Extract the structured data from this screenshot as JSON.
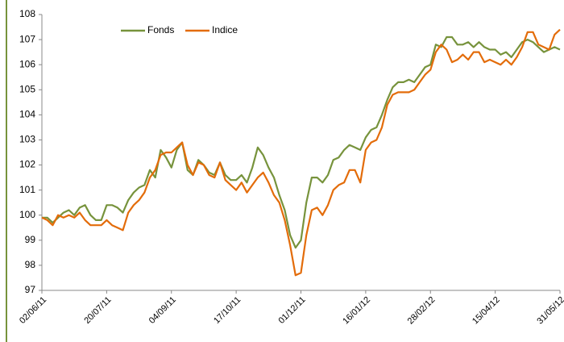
{
  "chart_data": {
    "type": "line",
    "categories": [
      "02/06/11",
      null,
      null,
      null,
      null,
      null,
      null,
      null,
      null,
      null,
      null,
      null,
      "20/07/11",
      null,
      null,
      null,
      null,
      null,
      null,
      null,
      null,
      null,
      null,
      null,
      "04/09/11",
      null,
      null,
      null,
      null,
      null,
      null,
      null,
      null,
      null,
      null,
      null,
      "17/10/11",
      null,
      null,
      null,
      null,
      null,
      null,
      null,
      null,
      null,
      null,
      null,
      "01/12/11",
      null,
      null,
      null,
      null,
      null,
      null,
      null,
      null,
      null,
      null,
      null,
      "16/01/12",
      null,
      null,
      null,
      null,
      null,
      null,
      null,
      null,
      null,
      null,
      null,
      "28/02/12",
      null,
      null,
      null,
      null,
      null,
      null,
      null,
      null,
      null,
      null,
      null,
      "15/04/12",
      null,
      null,
      null,
      null,
      null,
      null,
      null,
      null,
      null,
      null,
      null,
      "31/05/12"
    ],
    "series": [
      {
        "name": "Fonds",
        "color": "#77933c",
        "values": [
          99.9,
          99.9,
          99.7,
          99.9,
          100.1,
          100.2,
          100.0,
          100.3,
          100.4,
          100.0,
          99.8,
          99.8,
          100.4,
          100.4,
          100.3,
          100.1,
          100.6,
          100.9,
          101.1,
          101.2,
          101.8,
          101.5,
          102.6,
          102.3,
          101.9,
          102.6,
          102.9,
          101.8,
          101.6,
          102.2,
          102.0,
          101.7,
          101.6,
          102.1,
          101.6,
          101.4,
          101.4,
          101.6,
          101.3,
          101.9,
          102.7,
          102.4,
          101.9,
          101.5,
          100.8,
          100.2,
          99.2,
          98.7,
          99.0,
          100.5,
          101.5,
          101.5,
          101.3,
          101.6,
          102.2,
          102.3,
          102.6,
          102.8,
          102.7,
          102.6,
          103.1,
          103.4,
          103.5,
          104.0,
          104.6,
          105.1,
          105.3,
          105.3,
          105.4,
          105.3,
          105.6,
          105.9,
          106.0,
          106.8,
          106.7,
          107.1,
          107.1,
          106.8,
          106.8,
          106.9,
          106.7,
          106.9,
          106.7,
          106.6,
          106.6,
          106.4,
          106.5,
          106.3,
          106.6,
          106.9,
          107.0,
          106.9,
          106.7,
          106.5,
          106.6,
          106.7,
          106.6
        ]
      },
      {
        "name": "Indice",
        "color": "#e36c0a",
        "values": [
          99.9,
          99.8,
          99.6,
          100.0,
          99.9,
          100.0,
          99.9,
          100.1,
          99.8,
          99.6,
          99.6,
          99.6,
          99.8,
          99.6,
          99.5,
          99.4,
          100.1,
          100.4,
          100.6,
          100.9,
          101.5,
          101.8,
          102.4,
          102.5,
          102.5,
          102.7,
          102.9,
          102.0,
          101.6,
          102.1,
          102.0,
          101.6,
          101.5,
          102.1,
          101.4,
          101.2,
          101.0,
          101.3,
          100.9,
          101.2,
          101.5,
          101.7,
          101.3,
          100.8,
          100.5,
          99.8,
          98.8,
          97.6,
          97.7,
          99.2,
          100.2,
          100.3,
          100.0,
          100.4,
          101.0,
          101.2,
          101.3,
          101.8,
          101.8,
          101.3,
          102.6,
          102.9,
          103.0,
          103.5,
          104.4,
          104.8,
          104.9,
          104.9,
          104.9,
          105.0,
          105.3,
          105.6,
          105.8,
          106.5,
          106.8,
          106.6,
          106.1,
          106.2,
          106.4,
          106.2,
          106.5,
          106.5,
          106.1,
          106.2,
          106.1,
          106.0,
          106.2,
          106.0,
          106.3,
          106.7,
          107.3,
          107.3,
          106.8,
          106.7,
          106.6,
          107.2,
          107.4
        ]
      }
    ],
    "ylim": [
      97,
      108
    ],
    "yticks": [
      97,
      98,
      99,
      100,
      101,
      102,
      103,
      104,
      105,
      106,
      107,
      108
    ]
  }
}
